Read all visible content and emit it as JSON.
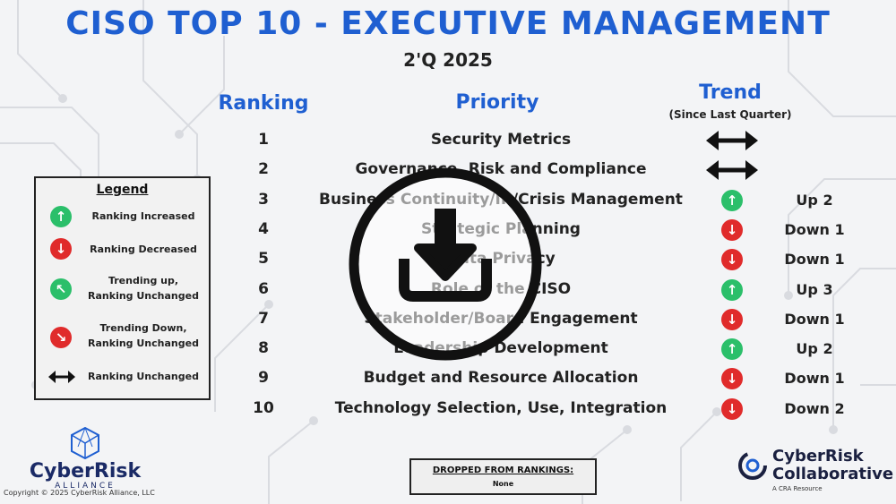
{
  "header": {
    "title": "CISO TOP 10 - EXECUTIVE MANAGEMENT",
    "subtitle": "2'Q 2025"
  },
  "columns": {
    "ranking": "Ranking",
    "priority": "Priority",
    "trend": "Trend",
    "trend_sub": "(Since Last Quarter)"
  },
  "rows": [
    {
      "rank": "1",
      "priority": "Security Metrics",
      "trend": "unchanged",
      "change": ""
    },
    {
      "rank": "2",
      "priority": "Governance, Risk and Compliance",
      "trend": "unchanged",
      "change": ""
    },
    {
      "rank": "3",
      "priority": "Business Continuity/IR/Crisis Management",
      "trend": "up",
      "change": "Up 2"
    },
    {
      "rank": "4",
      "priority": "Strategic Planning",
      "trend": "down",
      "change": "Down 1"
    },
    {
      "rank": "5",
      "priority": "Data Privacy",
      "trend": "down",
      "change": "Down 1"
    },
    {
      "rank": "6",
      "priority": "Role of the CISO",
      "trend": "up",
      "change": "Up 3"
    },
    {
      "rank": "7",
      "priority": "Stakeholder/Board Engagement",
      "trend": "down",
      "change": "Down 1"
    },
    {
      "rank": "8",
      "priority": "Leadership Development",
      "trend": "up",
      "change": "Up 2"
    },
    {
      "rank": "9",
      "priority": "Budget and Resource Allocation",
      "trend": "down",
      "change": "Down 1"
    },
    {
      "rank": "10",
      "priority": "Technology Selection, Use, Integration",
      "trend": "down",
      "change": "Down 2"
    }
  ],
  "legend": {
    "title": "Legend",
    "items": [
      {
        "icon": "arrow-up-icon",
        "label": "Ranking Increased"
      },
      {
        "icon": "arrow-down-icon",
        "label": "Ranking Decreased"
      },
      {
        "icon": "arrow-up-left-icon",
        "label": "Trending up,\nRanking Unchanged"
      },
      {
        "icon": "arrow-down-right-icon",
        "label": "Trending Down,\nRanking Unchanged"
      },
      {
        "icon": "double-arrow-icon",
        "label": "Ranking Unchanged"
      }
    ]
  },
  "dropped": {
    "label": "DROPPED FROM RANKINGS:",
    "value": "None"
  },
  "brand_left": {
    "name": "CyberRisk",
    "sub": "ALLIANCE"
  },
  "copyright": "Copyright © 2025 CyberRisk Alliance, LLC",
  "brand_right": {
    "name_line1": "CyberRisk",
    "name_line2": "Collaborative",
    "tagline": "A CRA Resource"
  },
  "overlay": {
    "icon": "download-icon"
  },
  "colors": {
    "title_blue": "#1f5fd1",
    "up_green": "#2bbf6a",
    "down_red": "#e02b2b",
    "brand_navy": "#1a2a66"
  }
}
